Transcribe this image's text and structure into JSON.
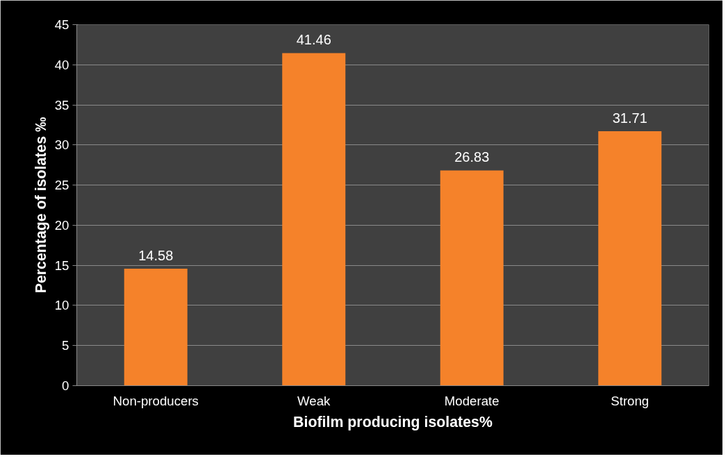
{
  "chart_data": {
    "type": "bar",
    "xlabel": "Biofilm producing isolates%",
    "ylabel": "Percentage of isolates ‰",
    "categories": [
      "Non-producers",
      "Weak",
      "Moderate",
      "Strong"
    ],
    "values": [
      14.58,
      41.46,
      26.83,
      31.71
    ],
    "color": "#f5822a",
    "ylim": [
      0,
      45
    ],
    "yticks": [
      0,
      5,
      10,
      15,
      20,
      25,
      30,
      35,
      40,
      45
    ],
    "grid": "y",
    "data_labels": true
  }
}
